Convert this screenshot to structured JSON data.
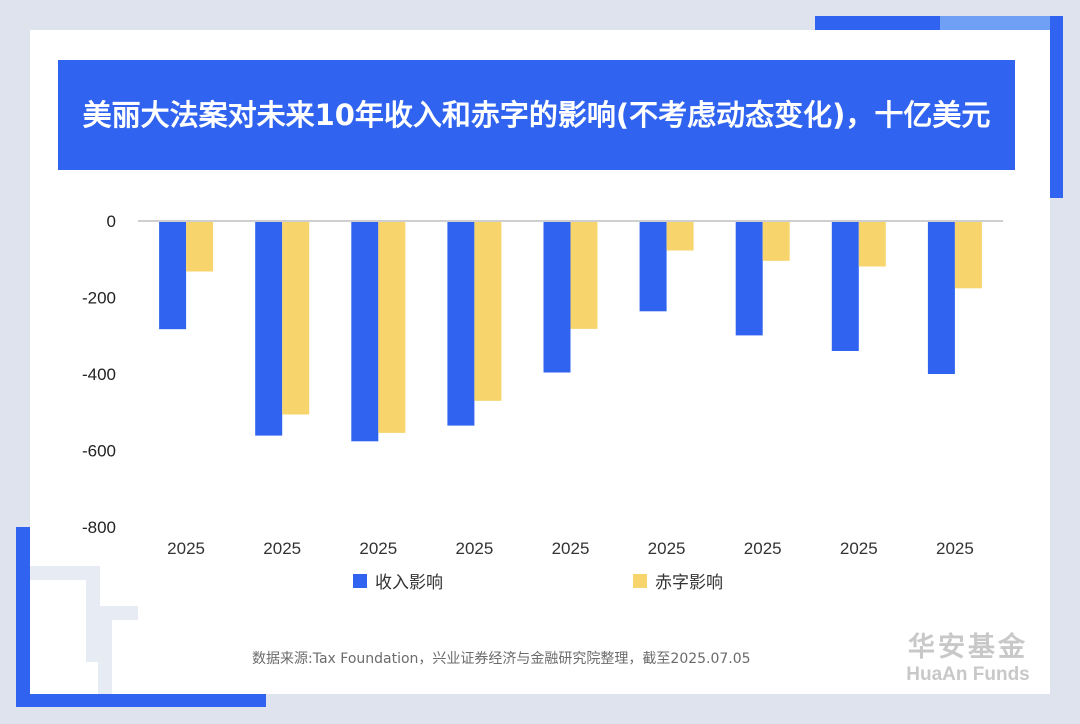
{
  "title": "美丽大法案对未来10年收入和赤字的影响(不考虑动态变化)，十亿美元",
  "source": "数据来源:Tax Foundation，兴业证券经济与金融研究院整理，截至2025.07.05",
  "brand": {
    "cn": "华安基金",
    "en": "HuaAn Funds"
  },
  "colors": {
    "income": "#2f63f0",
    "deficit": "#f7d56c",
    "banner": "#2f63f0"
  },
  "chart_data": {
    "type": "bar",
    "categories": [
      "2025",
      "2025",
      "2025",
      "2025",
      "2025",
      "2025",
      "2025",
      "2025",
      "2025"
    ],
    "series": [
      {
        "name": "收入影响",
        "values": [
          -283,
          -561,
          -576,
          -535,
          -396,
          -236,
          -299,
          -340,
          -400
        ]
      },
      {
        "name": "赤字影响",
        "values": [
          -132,
          -506,
          -554,
          -470,
          -282,
          -77,
          -104,
          -119,
          -176
        ]
      }
    ],
    "yticks": [
      "0",
      "-200",
      "-400",
      "-600",
      "-800"
    ],
    "ylim": [
      -800,
      0
    ],
    "grid": false,
    "legend_position": "bottom"
  }
}
